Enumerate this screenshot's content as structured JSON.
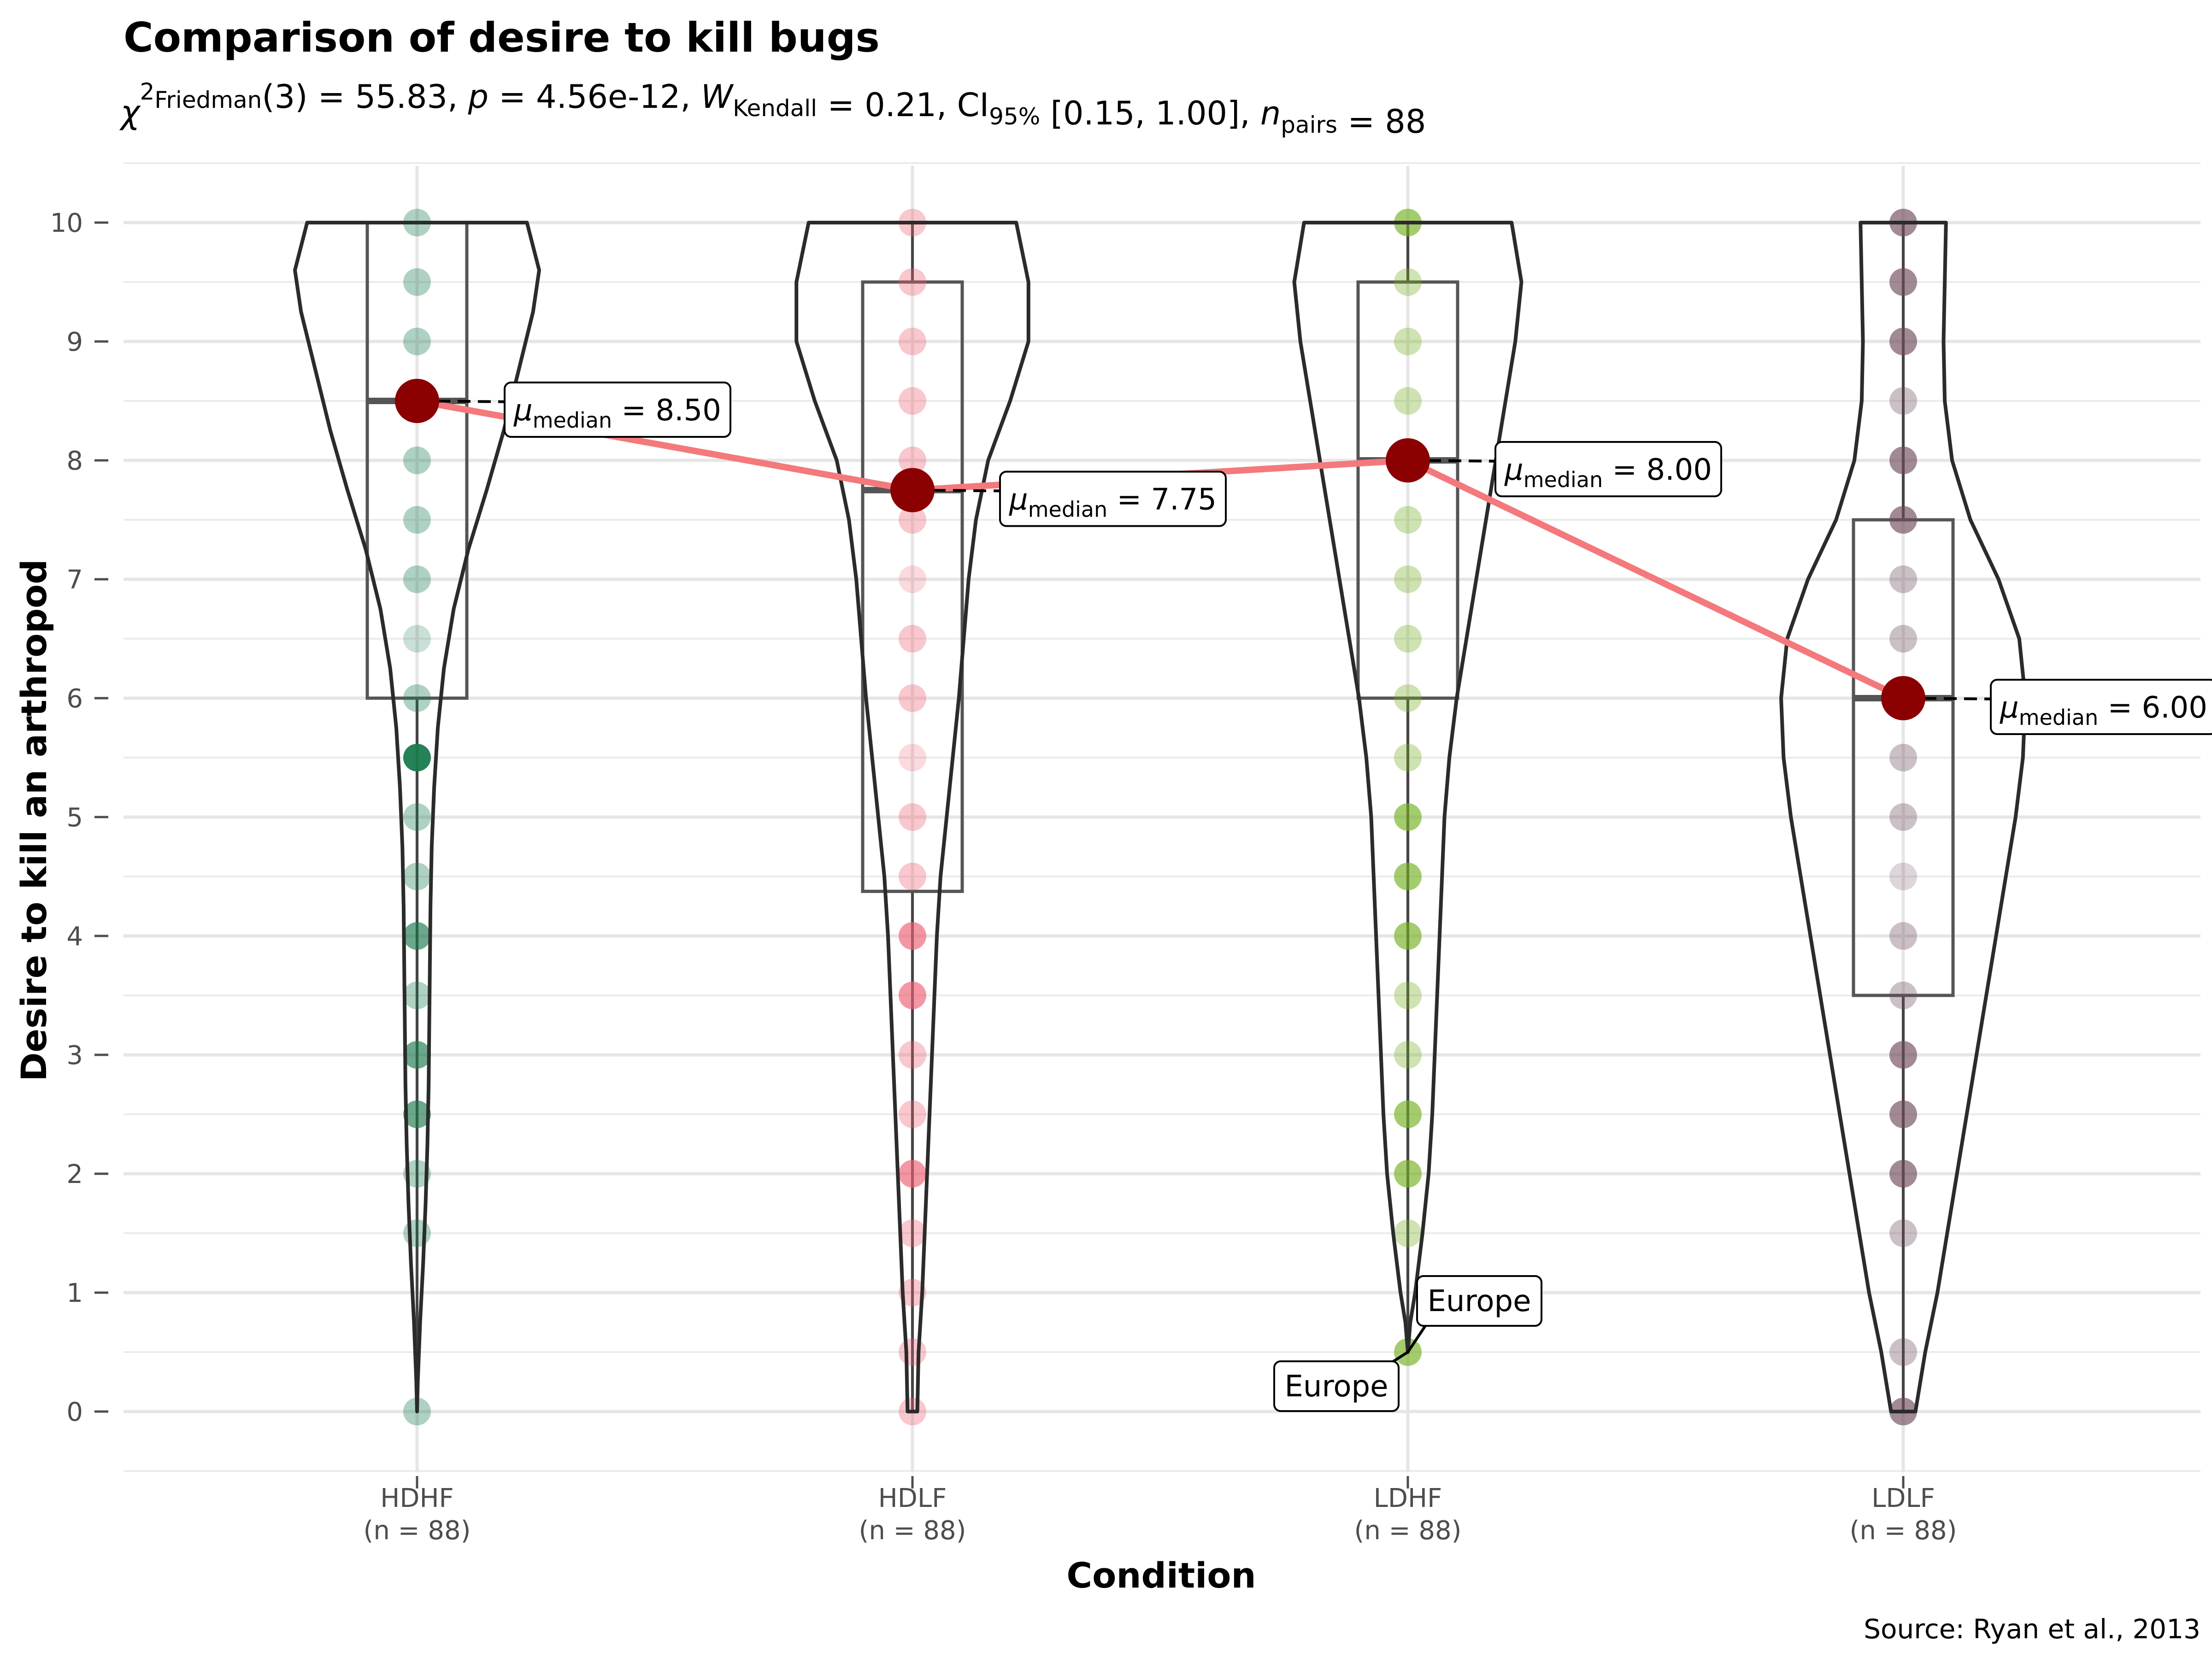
{
  "chart_data": {
    "type": "violin-box",
    "title": "Comparison of desire to kill bugs",
    "subtitle": {
      "parts": [
        {
          "t": "χ",
          "style": "italic"
        },
        {
          "t": "2",
          "style": "sup"
        },
        {
          "t": "Friedman",
          "style": "sub"
        },
        {
          "t": "(3) = 55.83, "
        },
        {
          "t": "p",
          "style": "italic"
        },
        {
          "t": " = 4.56e-12, "
        },
        {
          "t": "W",
          "style": "italic-hat"
        },
        {
          "t": "Kendall",
          "style": "sub"
        },
        {
          "t": " = 0.21, CI"
        },
        {
          "t": "95%",
          "style": "sub"
        },
        {
          "t": " [0.15, 1.00], "
        },
        {
          "t": "n",
          "style": "italic"
        },
        {
          "t": "pairs",
          "style": "sub"
        },
        {
          "t": " = 88"
        }
      ]
    },
    "xlabel": "Condition",
    "ylabel": "Desire to kill an arthropod",
    "caption": "Source: Ryan et al., 2013",
    "ylim": [
      -0.5,
      10.5
    ],
    "yticks": [
      0,
      1,
      2,
      3,
      4,
      5,
      6,
      7,
      8,
      9,
      10
    ],
    "grid": true,
    "categories": [
      {
        "name": "HDHF",
        "n_label": "(n = 88)",
        "color": "#1B7A4D",
        "median": 8.5,
        "median_label": "8.50",
        "box": {
          "q1": 6.0,
          "median": 8.5,
          "q3": 10.0,
          "whisker_low": 0.0,
          "whisker_high": 10.0
        },
        "violin": [
          [
            0,
            0
          ],
          [
            0.25,
            0.006
          ],
          [
            0.75,
            0.025
          ],
          [
            1.25,
            0.05
          ],
          [
            1.75,
            0.07
          ],
          [
            2.25,
            0.085
          ],
          [
            2.75,
            0.095
          ],
          [
            3.25,
            0.1
          ],
          [
            3.75,
            0.105
          ],
          [
            4.25,
            0.11
          ],
          [
            4.75,
            0.12
          ],
          [
            5.25,
            0.14
          ],
          [
            5.75,
            0.17
          ],
          [
            6.25,
            0.22
          ],
          [
            6.75,
            0.3
          ],
          [
            7.25,
            0.42
          ],
          [
            7.75,
            0.57
          ],
          [
            8.25,
            0.71
          ],
          [
            8.75,
            0.83
          ],
          [
            9.25,
            0.95
          ],
          [
            9.6,
            1.0
          ],
          [
            10,
            0.9
          ]
        ],
        "points": [
          [
            10,
            1
          ],
          [
            9.5,
            1
          ],
          [
            9,
            1
          ],
          [
            8,
            1
          ],
          [
            7.5,
            1
          ],
          [
            7,
            1
          ],
          [
            6.5,
            0.6
          ],
          [
            6,
            1
          ],
          [
            5.5,
            3
          ],
          [
            5,
            1
          ],
          [
            4.5,
            1
          ],
          [
            4,
            2
          ],
          [
            3.5,
            1
          ],
          [
            3,
            2
          ],
          [
            2.5,
            2
          ],
          [
            2,
            1
          ],
          [
            1.5,
            1
          ],
          [
            0,
            1
          ]
        ]
      },
      {
        "name": "HDLF",
        "n_label": "(n = 88)",
        "color": "#EE5F74",
        "median": 7.75,
        "median_label": "7.75",
        "box": {
          "q1": 4.375,
          "median": 7.75,
          "q3": 9.5,
          "whisker_low": 0.0,
          "whisker_high": 10.0
        },
        "violin": [
          [
            0,
            0.04
          ],
          [
            0.5,
            0.05
          ],
          [
            1,
            0.08
          ],
          [
            1.5,
            0.1
          ],
          [
            2,
            0.12
          ],
          [
            2.5,
            0.14
          ],
          [
            3,
            0.16
          ],
          [
            3.5,
            0.18
          ],
          [
            4,
            0.2
          ],
          [
            4.5,
            0.23
          ],
          [
            5,
            0.28
          ],
          [
            5.5,
            0.33
          ],
          [
            6,
            0.38
          ],
          [
            6.5,
            0.42
          ],
          [
            7,
            0.46
          ],
          [
            7.5,
            0.52
          ],
          [
            8,
            0.62
          ],
          [
            8.5,
            0.8
          ],
          [
            9,
            0.95
          ],
          [
            9.5,
            0.95
          ],
          [
            10,
            0.85
          ]
        ],
        "points": [
          [
            10,
            1
          ],
          [
            9.5,
            1
          ],
          [
            9,
            1
          ],
          [
            8.5,
            1
          ],
          [
            8,
            1
          ],
          [
            7.5,
            1
          ],
          [
            7,
            0.6
          ],
          [
            6.5,
            1
          ],
          [
            6,
            1
          ],
          [
            5.5,
            0.6
          ],
          [
            5,
            1
          ],
          [
            4.5,
            1
          ],
          [
            4,
            2
          ],
          [
            3.5,
            2
          ],
          [
            3,
            1
          ],
          [
            2.5,
            1
          ],
          [
            2,
            2
          ],
          [
            1.5,
            1
          ],
          [
            1,
            1
          ],
          [
            0.5,
            1
          ],
          [
            0,
            1
          ]
        ]
      },
      {
        "name": "LDHF",
        "n_label": "(n = 88)",
        "color": "#73B020",
        "median": 8.0,
        "median_label": "8.00",
        "box": {
          "q1": 6.0,
          "median": 8.0,
          "q3": 9.5,
          "whisker_low": 0.5,
          "whisker_high": 10.0
        },
        "violin": [
          [
            0.5,
            0
          ],
          [
            0.75,
            0.02
          ],
          [
            1,
            0.06
          ],
          [
            1.5,
            0.12
          ],
          [
            2,
            0.17
          ],
          [
            2.5,
            0.2
          ],
          [
            3,
            0.22
          ],
          [
            3.5,
            0.24
          ],
          [
            4,
            0.26
          ],
          [
            4.5,
            0.28
          ],
          [
            5,
            0.3
          ],
          [
            5.5,
            0.34
          ],
          [
            6,
            0.4
          ],
          [
            6.5,
            0.48
          ],
          [
            7,
            0.56
          ],
          [
            7.5,
            0.64
          ],
          [
            8,
            0.72
          ],
          [
            8.5,
            0.8
          ],
          [
            9,
            0.88
          ],
          [
            9.5,
            0.93
          ],
          [
            10,
            0.85
          ]
        ],
        "points": [
          [
            10,
            2
          ],
          [
            9.5,
            1
          ],
          [
            9,
            1
          ],
          [
            8.5,
            1
          ],
          [
            8,
            1
          ],
          [
            7.5,
            1
          ],
          [
            7,
            1
          ],
          [
            6.5,
            1
          ],
          [
            6,
            1
          ],
          [
            5.5,
            1
          ],
          [
            5,
            2
          ],
          [
            4.5,
            2
          ],
          [
            4,
            2
          ],
          [
            3.5,
            1
          ],
          [
            3,
            1
          ],
          [
            2.5,
            2
          ],
          [
            2,
            2
          ],
          [
            1.5,
            1
          ],
          [
            0.5,
            2
          ]
        ]
      },
      {
        "name": "LDLF",
        "n_label": "(n = 88)",
        "color": "#6E4A5E",
        "median": 6.0,
        "median_label": "6.00",
        "box": {
          "q1": 3.5,
          "median": 6.0,
          "q3": 7.5,
          "whisker_low": 0.0,
          "whisker_high": 10.0
        },
        "violin": [
          [
            0,
            0.1
          ],
          [
            0.5,
            0.18
          ],
          [
            1,
            0.28
          ],
          [
            1.5,
            0.36
          ],
          [
            2,
            0.44
          ],
          [
            2.5,
            0.52
          ],
          [
            3,
            0.6
          ],
          [
            3.5,
            0.68
          ],
          [
            4,
            0.76
          ],
          [
            4.5,
            0.84
          ],
          [
            5,
            0.92
          ],
          [
            5.5,
            0.98
          ],
          [
            6,
            1.0
          ],
          [
            6.5,
            0.95
          ],
          [
            7,
            0.78
          ],
          [
            7.5,
            0.55
          ],
          [
            8,
            0.4
          ],
          [
            8.5,
            0.34
          ],
          [
            9,
            0.33
          ],
          [
            9.5,
            0.34
          ],
          [
            10,
            0.35
          ]
        ],
        "points": [
          [
            10,
            2
          ],
          [
            9.5,
            2
          ],
          [
            9,
            2
          ],
          [
            8.5,
            1
          ],
          [
            8,
            2
          ],
          [
            7.5,
            2
          ],
          [
            7,
            1
          ],
          [
            6.5,
            1
          ],
          [
            6,
            1
          ],
          [
            5.5,
            1
          ],
          [
            5,
            1
          ],
          [
            4.5,
            0.6
          ],
          [
            4,
            1
          ],
          [
            3.5,
            1
          ],
          [
            3,
            2
          ],
          [
            2.5,
            2
          ],
          [
            2,
            2
          ],
          [
            1.5,
            1
          ],
          [
            0.5,
            1
          ],
          [
            0,
            2
          ]
        ]
      }
    ],
    "annotations": [
      {
        "text": "Europe",
        "category": "LDHF",
        "y": 0.5
      },
      {
        "text": "Europe",
        "category": "LDHF",
        "y": 0.5
      }
    ],
    "median_symbol": "μ",
    "median_subscript": "median"
  }
}
